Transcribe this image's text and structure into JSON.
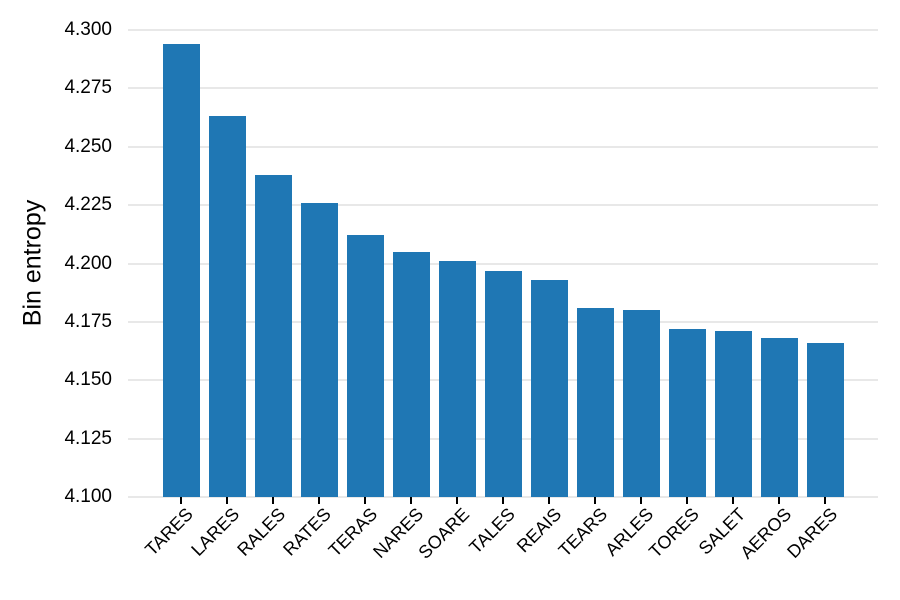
{
  "chart_data": {
    "type": "bar",
    "ylabel": "Bin entropy",
    "xlabel": "",
    "categories": [
      "TARES",
      "LARES",
      "RALES",
      "RATES",
      "TERAS",
      "NARES",
      "SOARE",
      "TALES",
      "REAIS",
      "TEARS",
      "ARLES",
      "TORES",
      "SALET",
      "AEROS",
      "DARES"
    ],
    "values": [
      4.294,
      4.263,
      4.238,
      4.226,
      4.212,
      4.205,
      4.201,
      4.197,
      4.193,
      4.181,
      4.18,
      4.172,
      4.171,
      4.168,
      4.166
    ],
    "ylim": [
      4.1,
      4.3
    ],
    "yticks": [
      "4.100",
      "4.125",
      "4.150",
      "4.175",
      "4.200",
      "4.225",
      "4.250",
      "4.275",
      "4.300"
    ],
    "grid": "horizontal",
    "legend": "none",
    "x_tick_label_rotation_deg": 45,
    "colors": {
      "bar": "#1f77b4",
      "gridline": "#e8e8e8",
      "text": "#000000",
      "background": "#ffffff"
    }
  }
}
